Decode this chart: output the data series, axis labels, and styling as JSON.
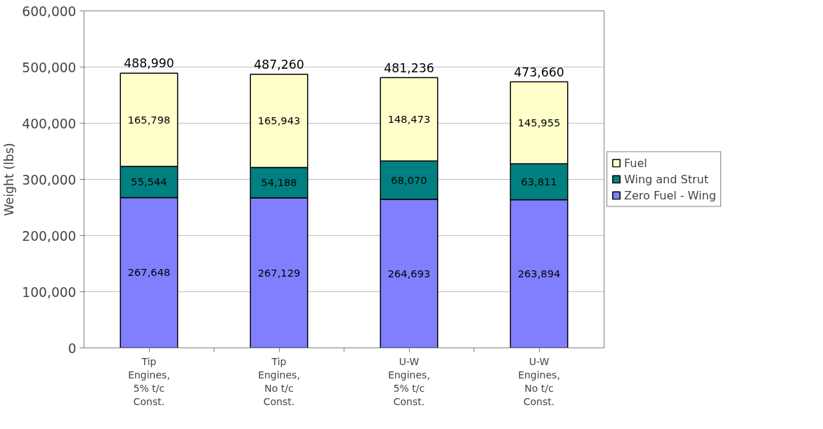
{
  "chart_data": {
    "type": "bar",
    "stacked": true,
    "ylabel": "Weight (lbs)",
    "categories": [
      "Tip Engines, 5% t/c Const.",
      "Tip Engines, No t/c Const.",
      "U-W Engines, 5% t/c Const.",
      "U-W Engines, No t/c Const."
    ],
    "series": [
      {
        "name": "Zero Fuel - Wing",
        "color": "#8080ff",
        "values": [
          267648,
          267129,
          264693,
          263894
        ],
        "value_labels": [
          "267,648",
          "267,129",
          "264,693",
          "263,894"
        ]
      },
      {
        "name": "Wing and Strut",
        "color": "#008080",
        "values": [
          55544,
          54188,
          68070,
          63811
        ],
        "value_labels": [
          "55,544",
          "54,188",
          "68,070",
          "63,811"
        ]
      },
      {
        "name": "Fuel",
        "color": "#ffffcc",
        "values": [
          165798,
          165943,
          148473,
          145955
        ],
        "value_labels": [
          "165,798",
          "165,943",
          "148,473",
          "145,955"
        ]
      }
    ],
    "totals": [
      "488,990",
      "487,260",
      "481,236",
      "473,660"
    ],
    "ylim": [
      0,
      600000
    ],
    "yticks": [
      {
        "value": 0,
        "label": "0"
      },
      {
        "value": 100000,
        "label": "100,000"
      },
      {
        "value": 200000,
        "label": "200,000"
      },
      {
        "value": 300000,
        "label": "300,000"
      },
      {
        "value": 400000,
        "label": "400,000"
      },
      {
        "value": 500000,
        "label": "500,000"
      },
      {
        "value": 600000,
        "label": "600,000"
      }
    ],
    "grid": "y",
    "legend": "right"
  }
}
